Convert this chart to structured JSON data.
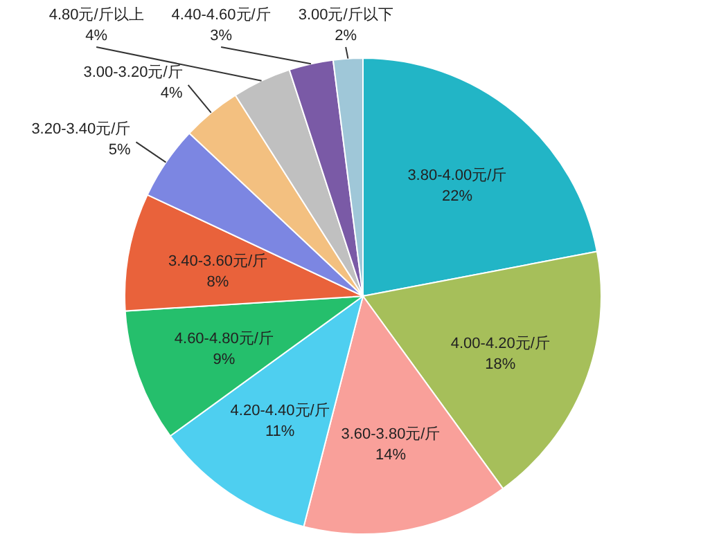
{
  "chart_data": {
    "type": "pie",
    "value_labels": [
      "22%",
      "18%",
      "14%",
      "11%",
      "9%",
      "8%",
      "5%",
      "4%",
      "4%",
      "3%",
      "2%"
    ],
    "categories": [
      "3.80-4.00元/斤",
      "4.00-4.20元/斤",
      "3.60-3.80元/斤",
      "4.20-4.40元/斤",
      "4.60-4.80元/斤",
      "3.40-3.60元/斤",
      "3.20-3.40元/斤",
      "3.00-3.20元/斤",
      "4.80元/斤以上",
      "4.40-4.60元/斤",
      "3.00元/斤以下"
    ],
    "values": [
      22,
      18,
      14,
      11,
      9,
      8,
      5,
      4,
      4,
      3,
      2
    ],
    "colors": [
      "#22b5c6",
      "#a6bf5a",
      "#f9a09a",
      "#4ecff0",
      "#25bf6c",
      "#e9623b",
      "#7c86e2",
      "#f3c080",
      "#c0c0c0",
      "#7a5aa6",
      "#9fc7d8"
    ]
  }
}
